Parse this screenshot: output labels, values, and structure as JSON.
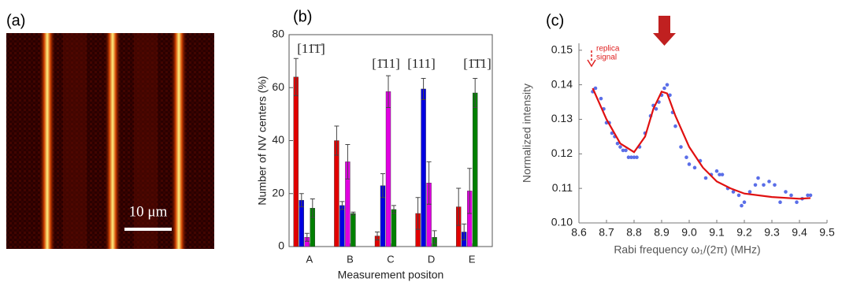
{
  "chart_data": [
    {
      "type": "image",
      "panel_label": "(a)",
      "scale_bar": "10 μm"
    },
    {
      "type": "bar",
      "panel_label": "(b)",
      "ylabel": "Number of NV centers (%)",
      "xlabel": "Measurement positon",
      "categories": [
        "A",
        "B",
        "C",
        "D",
        "E"
      ],
      "series": [
        {
          "color": "#e00000",
          "values": [
            64,
            40,
            4,
            12.5,
            15
          ],
          "errors": [
            7,
            5.5,
            1.5,
            6,
            7
          ]
        },
        {
          "color": "#0000e0",
          "values": [
            17.5,
            15.5,
            23,
            59.5,
            5.5
          ],
          "errors": [
            2.5,
            1.5,
            4.5,
            4,
            3
          ]
        },
        {
          "color": "#e000e0",
          "values": [
            3.5,
            32,
            58.5,
            24,
            21
          ],
          "errors": [
            1.5,
            6.5,
            6,
            8,
            8.5
          ]
        },
        {
          "color": "#008000",
          "values": [
            14.5,
            12.5,
            14,
            3.5,
            58
          ],
          "errors": [
            3.5,
            0.5,
            1.5,
            2.5,
            5.5
          ]
        }
      ],
      "annotations": [
        "[11̄1̄]",
        "[1̄11]",
        "[111]",
        "[1̄1̄1]"
      ],
      "ylim": [
        0,
        80
      ],
      "yticks": [
        0,
        20,
        40,
        60,
        80
      ]
    },
    {
      "type": "scatter",
      "panel_label": "(c)",
      "ylabel": "Normalized intensity",
      "xlabel": "Rabi frequency ω₁/(2π) (MHz)",
      "annotation": [
        "replica",
        "signal"
      ],
      "xlim": [
        8.6,
        9.5
      ],
      "xticks": [
        8.6,
        8.7,
        8.8,
        8.9,
        {
          "value": 9,
          "label": "9.0"
        },
        9.1,
        9.2,
        9.3,
        9.4,
        9.5
      ],
      "ylim": [
        0.1,
        0.152
      ],
      "yticks": [
        {
          "value": 0.1,
          "label": "0.10"
        },
        0.11,
        0.12,
        0.13,
        0.14,
        0.15
      ],
      "series": [
        {
          "kind": "points",
          "color": "#5a6ee8",
          "x": [
            8.65,
            8.66,
            8.68,
            8.69,
            8.7,
            8.71,
            8.72,
            8.73,
            8.74,
            8.75,
            8.76,
            8.77,
            8.78,
            8.79,
            8.8,
            8.81,
            8.82,
            8.84,
            8.86,
            8.87,
            8.88,
            8.89,
            8.9,
            8.91,
            8.92,
            8.93,
            8.94,
            8.95,
            8.97,
            8.99,
            9.0,
            9.02,
            9.04,
            9.06,
            9.08,
            9.1,
            9.11,
            9.12,
            9.14,
            9.16,
            9.18,
            9.19,
            9.2,
            9.22,
            9.24,
            9.25,
            9.27,
            9.29,
            9.31,
            9.33,
            9.35,
            9.37,
            9.39,
            9.41,
            9.43,
            9.44
          ],
          "values": [
            0.138,
            0.139,
            0.136,
            0.133,
            0.129,
            0.129,
            0.126,
            0.125,
            0.123,
            0.122,
            0.121,
            0.121,
            0.119,
            0.119,
            0.119,
            0.119,
            0.122,
            0.126,
            0.131,
            0.134,
            0.133,
            0.135,
            0.137,
            0.139,
            0.14,
            0.137,
            0.132,
            0.128,
            0.122,
            0.119,
            0.117,
            0.116,
            0.118,
            0.113,
            0.114,
            0.115,
            0.114,
            0.114,
            0.11,
            0.109,
            0.108,
            0.105,
            0.106,
            0.109,
            0.111,
            0.113,
            0.111,
            0.112,
            0.111,
            0.106,
            0.109,
            0.108,
            0.106,
            0.107,
            0.108,
            0.108
          ]
        },
        {
          "kind": "line",
          "color": "#e01010",
          "x": [
            8.65,
            8.7,
            8.75,
            8.8,
            8.84,
            8.87,
            8.9,
            8.92,
            8.95,
            9.0,
            9.05,
            9.1,
            9.15,
            9.2,
            9.3,
            9.4,
            9.44
          ],
          "values": [
            0.139,
            0.13,
            0.123,
            0.1205,
            0.125,
            0.133,
            0.138,
            0.1375,
            0.131,
            0.122,
            0.116,
            0.112,
            0.11,
            0.1085,
            0.1075,
            0.107,
            0.1072
          ]
        }
      ]
    }
  ]
}
